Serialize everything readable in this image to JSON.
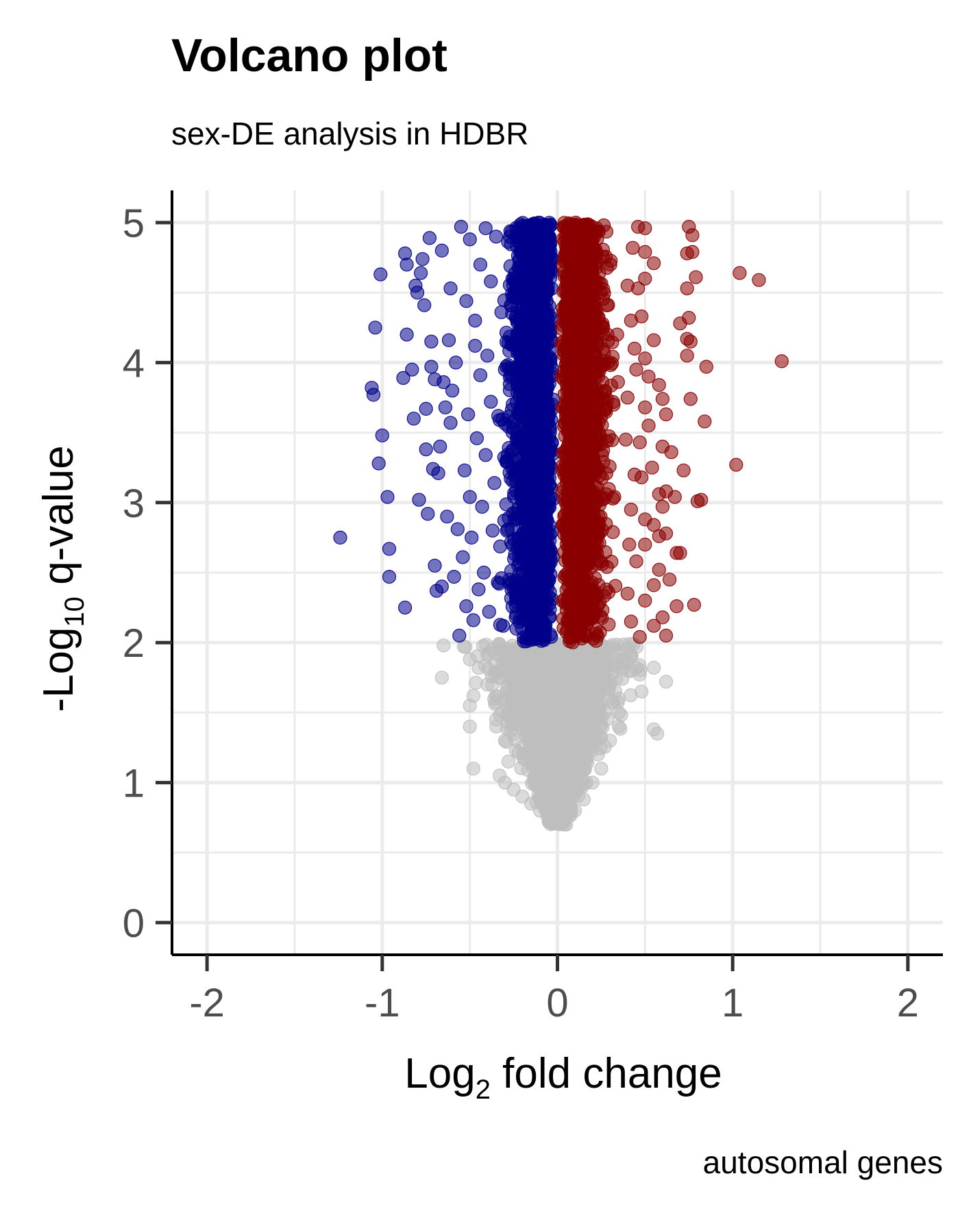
{
  "chart_data": {
    "type": "scatter",
    "title": "Volcano plot",
    "subtitle": "sex-DE analysis in HDBR",
    "caption": "autosomal genes",
    "xlabel": {
      "main": "Log",
      "sub": "2",
      "rest": " fold change"
    },
    "ylabel": {
      "main": "-Log",
      "sub": "10",
      "rest": " q-value"
    },
    "xlim": [
      -2.2,
      2.2
    ],
    "ylim": [
      -0.23,
      5.23
    ],
    "x_ticks": [
      -2,
      -1,
      0,
      1,
      2
    ],
    "x_tick_labels": [
      "-2",
      "-1",
      "0",
      "1",
      "2"
    ],
    "y_ticks": [
      0,
      1,
      2,
      3,
      4,
      5
    ],
    "y_tick_labels": [
      "0",
      "1",
      "2",
      "3",
      "4",
      "5"
    ],
    "x_minor_ticks": [
      -1.5,
      -0.5,
      0.5,
      1.5
    ],
    "y_minor_ticks": [
      0.5,
      1.5,
      2.5,
      3.5,
      4.5
    ],
    "grid": true,
    "colors": {
      "down": "#00008b",
      "up": "#8b0000",
      "nonsig": "#bebebe"
    },
    "point_opacity": 0.55,
    "q_threshold": 2,
    "cap": 5,
    "series": [
      {
        "group": "down",
        "points": [
          [
            -1.24,
            2.75
          ],
          [
            -1.06,
            3.82
          ],
          [
            -1.05,
            3.77
          ],
          [
            -1.04,
            4.25
          ],
          [
            -1.01,
            4.63
          ],
          [
            -1.0,
            3.48
          ],
          [
            -1.02,
            3.28
          ],
          [
            -0.97,
            3.04
          ],
          [
            -0.96,
            2.67
          ],
          [
            -0.96,
            2.47
          ],
          [
            -0.87,
            2.25
          ],
          [
            -0.88,
            3.89
          ],
          [
            -0.87,
            4.78
          ],
          [
            -0.86,
            4.7
          ],
          [
            -0.86,
            4.2
          ],
          [
            -0.83,
            3.95
          ],
          [
            -0.82,
            3.6
          ],
          [
            -0.81,
            4.55
          ],
          [
            -0.8,
            4.5
          ],
          [
            -0.79,
            3.02
          ],
          [
            -0.78,
            4.64
          ],
          [
            -0.77,
            4.74
          ],
          [
            -0.76,
            4.41
          ],
          [
            -0.75,
            3.38
          ],
          [
            -0.75,
            3.67
          ],
          [
            -0.74,
            2.92
          ],
          [
            -0.73,
            4.89
          ],
          [
            -0.72,
            3.97
          ],
          [
            -0.72,
            4.15
          ],
          [
            -0.71,
            3.24
          ],
          [
            -0.7,
            3.88
          ],
          [
            -0.7,
            2.55
          ],
          [
            -0.69,
            2.37
          ],
          [
            -0.68,
            3.21
          ],
          [
            -0.67,
            3.4
          ],
          [
            -0.66,
            4.8
          ],
          [
            -0.66,
            2.4
          ],
          [
            -0.65,
            3.86
          ],
          [
            -0.64,
            3.68
          ],
          [
            -0.63,
            2.9
          ],
          [
            -0.62,
            4.16
          ],
          [
            -0.61,
            3.57
          ],
          [
            -0.61,
            4.53
          ],
          [
            -0.6,
            3.8
          ],
          [
            -0.59,
            2.47
          ],
          [
            -0.58,
            4.0
          ],
          [
            -0.57,
            2.81
          ],
          [
            -0.56,
            2.05
          ],
          [
            -0.55,
            4.97
          ],
          [
            -0.54,
            2.61
          ],
          [
            -0.53,
            3.23
          ],
          [
            -0.52,
            4.44
          ],
          [
            -0.52,
            2.26
          ],
          [
            -0.51,
            3.63
          ],
          [
            -0.5,
            4.88
          ],
          [
            -0.5,
            3.04
          ],
          [
            -0.49,
            2.75
          ],
          [
            -0.48,
            2.16
          ],
          [
            -0.47,
            4.12
          ],
          [
            -0.47,
            4.3
          ],
          [
            -0.46,
            3.46
          ],
          [
            -0.45,
            2.38
          ],
          [
            -0.44,
            4.7
          ],
          [
            -0.44,
            3.91
          ],
          [
            -0.43,
            2.97
          ],
          [
            -0.42,
            2.5
          ],
          [
            -0.41,
            4.96
          ],
          [
            -0.41,
            3.34
          ],
          [
            -0.4,
            4.05
          ],
          [
            -0.39,
            2.22
          ],
          [
            -0.38,
            3.72
          ],
          [
            -0.38,
            4.58
          ],
          [
            -0.37,
            2.8
          ],
          [
            -0.36,
            3.14
          ],
          [
            -0.35,
            4.9
          ],
          [
            -0.34,
            2.43
          ],
          [
            -0.33,
            3.59
          ],
          [
            -0.32,
            4.36
          ],
          [
            -0.31,
            2.12
          ],
          [
            -0.3,
            3.95
          ]
        ]
      },
      {
        "group": "up",
        "points": [
          [
            0.46,
            4.97
          ],
          [
            0.5,
            4.96
          ],
          [
            0.5,
            4.79
          ],
          [
            0.55,
            4.71
          ],
          [
            0.5,
            4.6
          ],
          [
            0.46,
            4.53
          ],
          [
            0.48,
            4.33
          ],
          [
            0.55,
            4.16
          ],
          [
            0.5,
            4.03
          ],
          [
            0.52,
            3.9
          ],
          [
            0.58,
            3.84
          ],
          [
            0.6,
            3.74
          ],
          [
            0.62,
            3.63
          ],
          [
            0.5,
            3.68
          ],
          [
            0.52,
            3.55
          ],
          [
            0.47,
            3.43
          ],
          [
            0.6,
            3.4
          ],
          [
            0.65,
            3.36
          ],
          [
            0.54,
            3.25
          ],
          [
            0.48,
            3.18
          ],
          [
            0.58,
            3.06
          ],
          [
            0.62,
            3.08
          ],
          [
            0.67,
            3.04
          ],
          [
            0.6,
            2.97
          ],
          [
            0.5,
            2.88
          ],
          [
            0.55,
            2.84
          ],
          [
            0.58,
            2.76
          ],
          [
            0.62,
            2.78
          ],
          [
            0.5,
            2.7
          ],
          [
            0.68,
            2.64
          ],
          [
            0.58,
            2.52
          ],
          [
            0.64,
            2.45
          ],
          [
            0.55,
            2.41
          ],
          [
            0.5,
            2.3
          ],
          [
            0.68,
            2.26
          ],
          [
            0.6,
            2.18
          ],
          [
            0.55,
            2.12
          ],
          [
            0.62,
            2.05
          ],
          [
            0.47,
            2.04
          ],
          [
            0.75,
            4.97
          ],
          [
            0.77,
            4.91
          ],
          [
            0.74,
            4.78
          ],
          [
            0.77,
            4.79
          ],
          [
            0.79,
            4.61
          ],
          [
            0.74,
            4.53
          ],
          [
            0.75,
            4.32
          ],
          [
            0.7,
            4.28
          ],
          [
            0.74,
            4.17
          ],
          [
            0.76,
            4.15
          ],
          [
            0.74,
            4.05
          ],
          [
            0.85,
            3.97
          ],
          [
            0.76,
            3.74
          ],
          [
            0.84,
            3.58
          ],
          [
            0.8,
            3.01
          ],
          [
            0.82,
            3.02
          ],
          [
            0.72,
            3.23
          ],
          [
            0.7,
            2.64
          ],
          [
            0.78,
            2.27
          ],
          [
            1.04,
            4.64
          ],
          [
            1.15,
            4.59
          ],
          [
            1.28,
            4.01
          ],
          [
            1.02,
            3.27
          ],
          [
            0.4,
            4.55
          ],
          [
            0.42,
            4.3
          ],
          [
            0.44,
            3.2
          ],
          [
            0.42,
            2.95
          ],
          [
            0.45,
            2.58
          ],
          [
            0.4,
            2.35
          ],
          [
            0.42,
            2.15
          ],
          [
            0.4,
            3.75
          ],
          [
            0.43,
            4.82
          ],
          [
            0.41,
            2.7
          ],
          [
            0.44,
            4.1
          ],
          [
            0.39,
            3.45
          ],
          [
            0.45,
            3.95
          ]
        ]
      },
      {
        "group": "nonsig",
        "points": [
          [
            -0.65,
            1.98
          ],
          [
            -0.66,
            1.75
          ],
          [
            -0.5,
            1.88
          ],
          [
            -0.48,
            1.62
          ],
          [
            -0.5,
            1.55
          ],
          [
            -0.5,
            1.4
          ],
          [
            -0.48,
            1.1
          ],
          [
            -0.33,
            1.05
          ],
          [
            -0.3,
            1.0
          ],
          [
            -0.45,
            1.82
          ],
          [
            -0.4,
            1.7
          ],
          [
            -0.35,
            1.45
          ],
          [
            -0.3,
            1.3
          ],
          [
            -0.28,
            1.15
          ],
          [
            -0.25,
            0.95
          ],
          [
            -0.2,
            0.9
          ],
          [
            -0.15,
            0.85
          ],
          [
            0.3,
            1.7
          ],
          [
            0.35,
            1.6
          ],
          [
            0.38,
            1.85
          ],
          [
            0.42,
            1.9
          ],
          [
            0.45,
            1.82
          ],
          [
            0.48,
            1.65
          ],
          [
            0.55,
            1.82
          ],
          [
            0.62,
            1.72
          ],
          [
            0.55,
            1.38
          ],
          [
            0.57,
            1.35
          ],
          [
            0.35,
            1.5
          ],
          [
            0.3,
            1.3
          ],
          [
            0.25,
            1.1
          ],
          [
            0.2,
            1.0
          ],
          [
            0.15,
            0.88
          ],
          [
            0.35,
            1.4
          ],
          [
            0.4,
            1.95
          ],
          [
            0.2,
            1.9
          ],
          [
            0.1,
            0.8
          ],
          [
            -0.1,
            0.8
          ],
          [
            0.0,
            0.75
          ],
          [
            0.05,
            0.7
          ],
          [
            -0.05,
            0.72
          ]
        ]
      }
    ]
  }
}
